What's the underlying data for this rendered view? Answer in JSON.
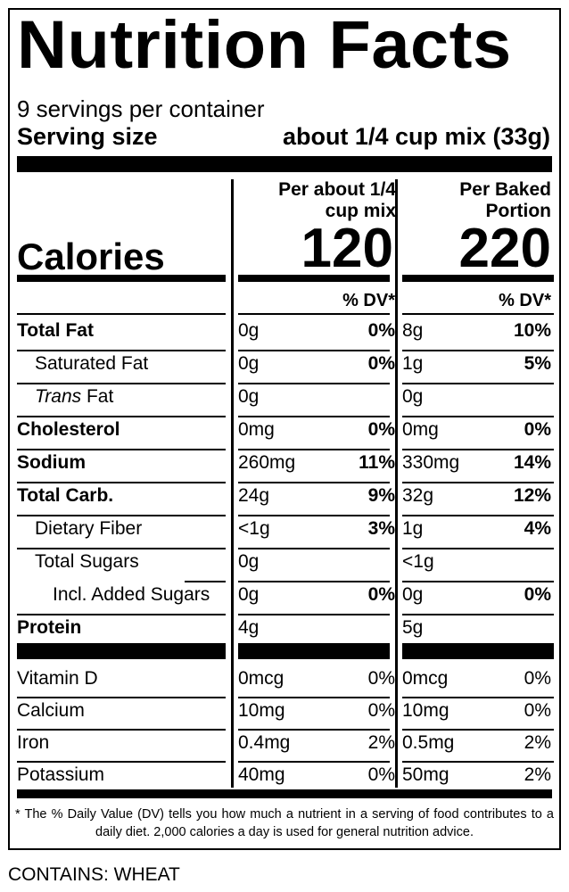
{
  "title": "Nutrition Facts",
  "servings_per_container": "9 servings per container",
  "serving_size": {
    "label": "Serving size",
    "value": "about 1/4 cup mix (33g)"
  },
  "columns": [
    {
      "header_line1": "Per about 1/4",
      "header_line2": "cup mix",
      "calories": "120",
      "dv_header": "% DV*"
    },
    {
      "header_line1": "Per Baked",
      "header_line2": "Portion",
      "calories": "220",
      "dv_header": "% DV*"
    }
  ],
  "calories_label": "Calories",
  "nutrients": [
    {
      "label": "Total Fat",
      "bold": true,
      "values": [
        {
          "amount": "0g",
          "dv": "0%"
        },
        {
          "amount": "8g",
          "dv": "10%"
        }
      ]
    },
    {
      "label": "Saturated Fat",
      "values": [
        {
          "amount": "0g",
          "dv": "0%"
        },
        {
          "amount": "1g",
          "dv": "5%"
        }
      ]
    },
    {
      "label_italic": "Trans",
      "label_rest": " Fat",
      "values": [
        {
          "amount": "0g",
          "dv": ""
        },
        {
          "amount": "0g",
          "dv": ""
        }
      ]
    },
    {
      "label": "Cholesterol",
      "bold": true,
      "values": [
        {
          "amount": "0mg",
          "dv": "0%"
        },
        {
          "amount": "0mg",
          "dv": "0%"
        }
      ]
    },
    {
      "label": "Sodium",
      "bold": true,
      "values": [
        {
          "amount": "260mg",
          "dv": "11%"
        },
        {
          "amount": "330mg",
          "dv": "14%"
        }
      ]
    },
    {
      "label": "Total Carb.",
      "bold": true,
      "values": [
        {
          "amount": "24g",
          "dv": "9%"
        },
        {
          "amount": "32g",
          "dv": "12%"
        }
      ]
    },
    {
      "label": "Dietary Fiber",
      "values": [
        {
          "amount": "<1g",
          "dv": "3%"
        },
        {
          "amount": "1g",
          "dv": "4%"
        }
      ]
    },
    {
      "label": "Total Sugars",
      "values": [
        {
          "amount": "0g",
          "dv": ""
        },
        {
          "amount": "<1g",
          "dv": ""
        }
      ]
    },
    {
      "label": "Incl. Added Sugars",
      "values": [
        {
          "amount": "0g",
          "dv": "0%"
        },
        {
          "amount": "0g",
          "dv": "0%"
        }
      ]
    },
    {
      "label": "Protein",
      "bold": true,
      "values": [
        {
          "amount": "4g",
          "dv": ""
        },
        {
          "amount": "5g",
          "dv": ""
        }
      ]
    }
  ],
  "micronutrients": [
    {
      "label": "Vitamin D",
      "values": [
        {
          "amount": "0mcg",
          "dv": "0%"
        },
        {
          "amount": "0mcg",
          "dv": "0%"
        }
      ]
    },
    {
      "label": "Calcium",
      "values": [
        {
          "amount": "10mg",
          "dv": "0%"
        },
        {
          "amount": "10mg",
          "dv": "0%"
        }
      ]
    },
    {
      "label": "Iron",
      "values": [
        {
          "amount": "0.4mg",
          "dv": "2%"
        },
        {
          "amount": "0.5mg",
          "dv": "2%"
        }
      ]
    },
    {
      "label": "Potassium",
      "values": [
        {
          "amount": "40mg",
          "dv": "0%"
        },
        {
          "amount": "50mg",
          "dv": "2%"
        }
      ]
    }
  ],
  "footnote": "* The % Daily Value (DV) tells you how much a nutrient in a serving of food contributes to a daily diet. 2,000 calories a day is used for general nutrition advice.",
  "contains": "CONTAINS: WHEAT"
}
